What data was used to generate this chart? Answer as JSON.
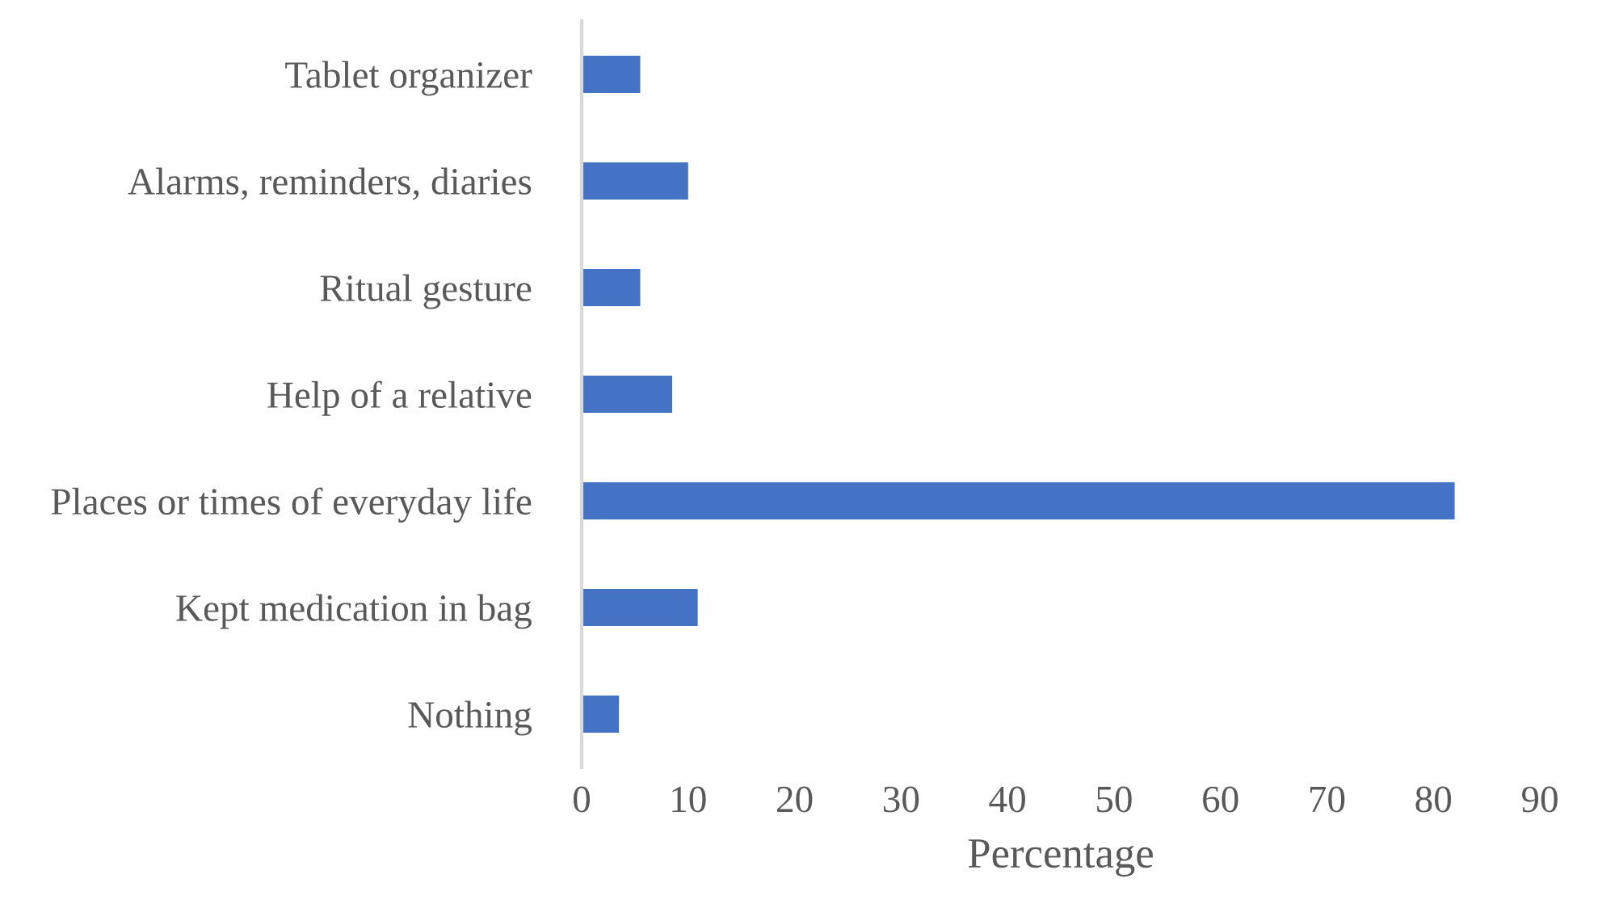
{
  "chart_data": {
    "type": "bar",
    "orientation": "horizontal",
    "xlabel": "Percentage",
    "categories": [
      "Tablet organizer",
      "Alarms, reminders, diaries",
      "Ritual gesture",
      "Help of a relative",
      "Places or times of everyday life",
      "Kept medication in bag",
      "Nothing"
    ],
    "values": [
      5.5,
      10,
      5.5,
      8.5,
      82,
      10.9,
      3.5
    ],
    "color": "#4472c4",
    "xlim": [
      0,
      90
    ],
    "xticks": [
      0,
      10,
      20,
      30,
      40,
      50,
      60,
      70,
      80,
      90
    ],
    "grid": false,
    "legend": false
  }
}
